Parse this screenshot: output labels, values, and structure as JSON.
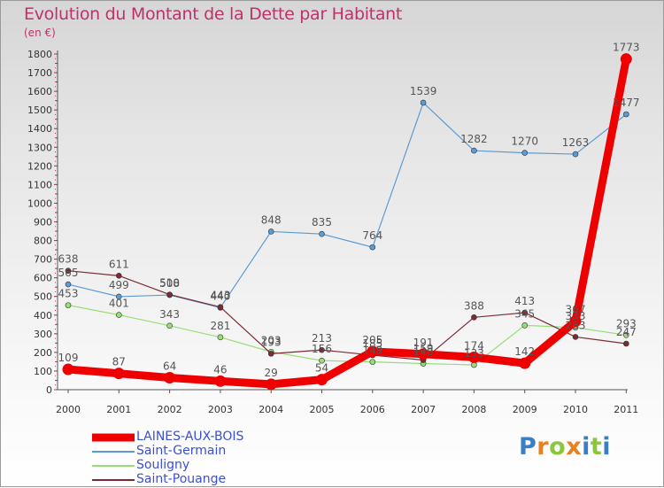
{
  "title": "Evolution du Montant de la Dette par Habitant",
  "subtitle": "(en €)",
  "logo": {
    "letters": [
      "P",
      "r",
      "o",
      "x",
      "i",
      "t",
      "i"
    ],
    "colors": [
      "#3a7fc4",
      "#e8821e",
      "#8cc63e",
      "#e8821e",
      "#3a7fc4",
      "#8cc63e",
      "#3a7fc4"
    ]
  },
  "chart_data": {
    "type": "line",
    "title": "Evolution du Montant de la Dette par Habitant",
    "ylabel": "(en €)",
    "xlabel": "",
    "x": [
      "2000",
      "2001",
      "2002",
      "2003",
      "2004",
      "2005",
      "2006",
      "2007",
      "2008",
      "2009",
      "2010",
      "2011"
    ],
    "ylim": [
      0,
      1800
    ],
    "yticks": [
      0,
      100,
      200,
      300,
      400,
      500,
      600,
      700,
      800,
      900,
      1000,
      1100,
      1200,
      1300,
      1400,
      1500,
      1600,
      1700,
      1800
    ],
    "grid": false,
    "legend": "bottom-left",
    "series": [
      {
        "name": "LAINES-AUX-BOIS",
        "color": "#ee0000",
        "values": [
          109,
          87,
          64,
          46,
          29,
          54,
          205,
          191,
          174,
          142,
          367,
          1773
        ]
      },
      {
        "name": "Saint-Germain",
        "color": "#5b9bd2",
        "values": [
          565,
          499,
          508,
          440,
          848,
          835,
          764,
          1539,
          1282,
          1270,
          1263,
          1477
        ]
      },
      {
        "name": "Souligny",
        "color": "#99dd77",
        "values": [
          453,
          401,
          343,
          281,
          203,
          156,
          149,
          140,
          133,
          345,
          333,
          293
        ]
      },
      {
        "name": "Saint-Pouange",
        "color": "#7a2b36",
        "values": [
          638,
          611,
          510,
          443,
          193,
          213,
          185,
          159,
          388,
          413,
          283,
          247
        ]
      }
    ]
  }
}
